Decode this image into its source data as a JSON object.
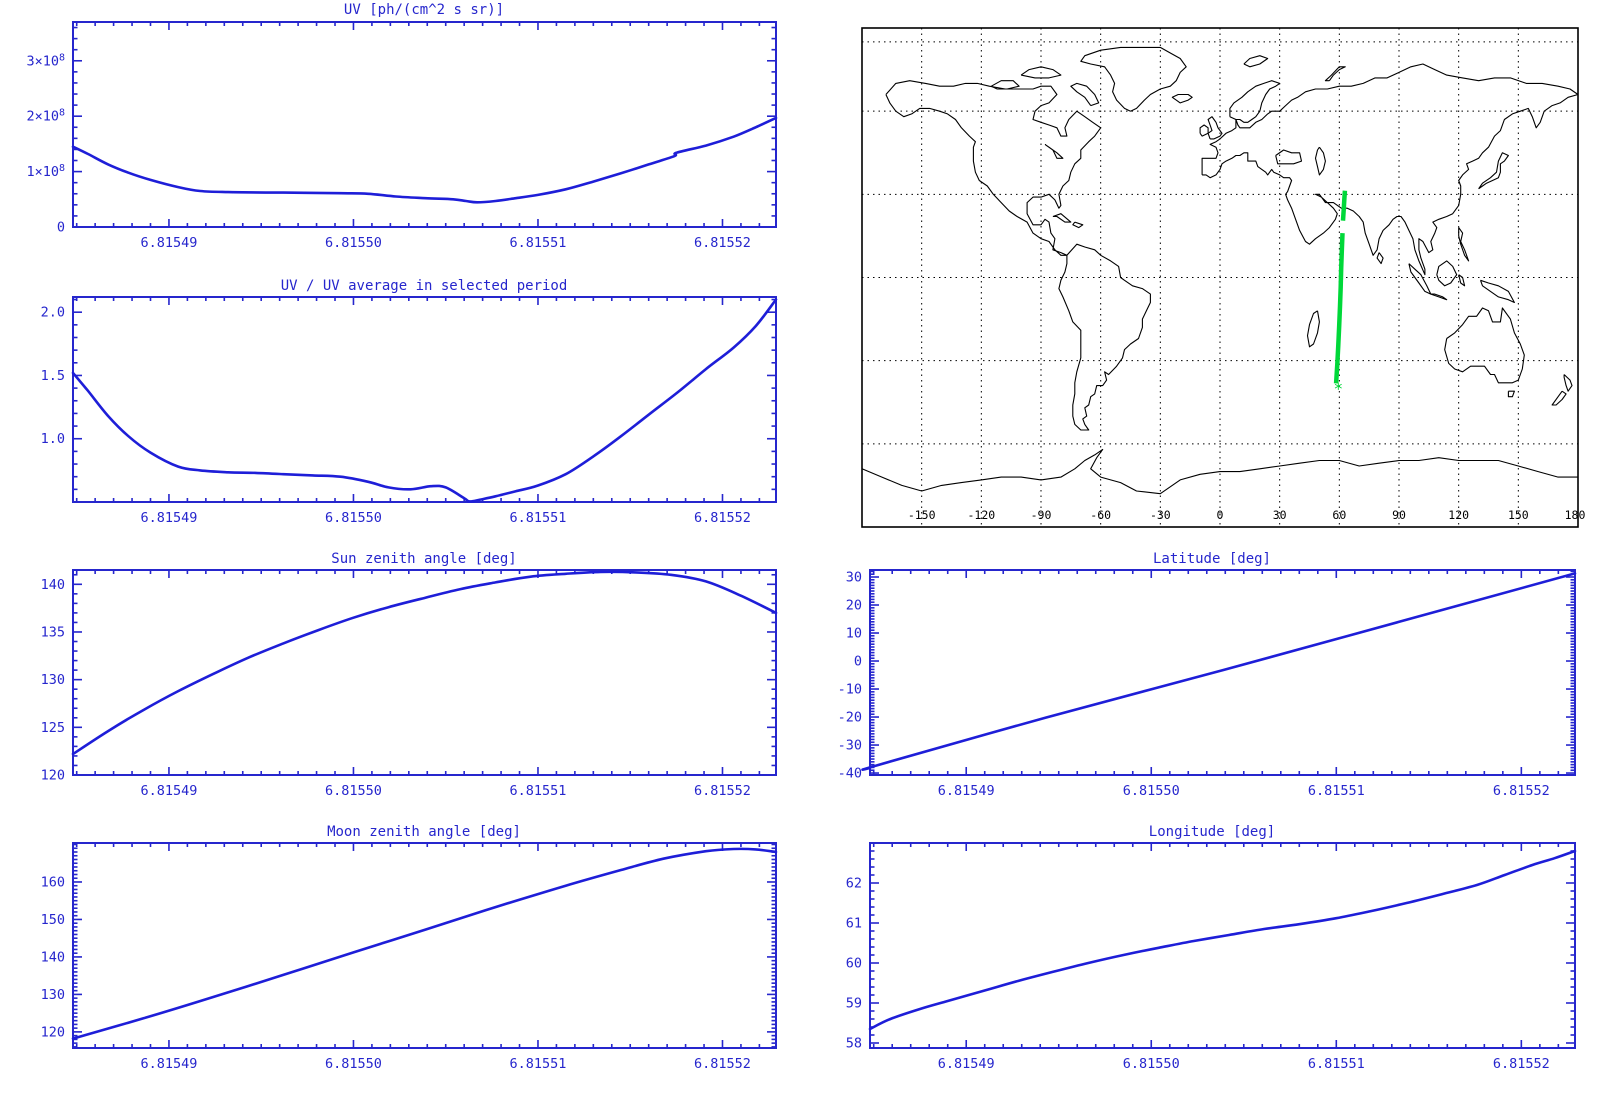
{
  "colors": {
    "axis": "#2626cd",
    "curve": "#1e1ed8",
    "map_outline": "#000000",
    "map_label": "#000000",
    "track": "#00d839",
    "background": "#ffffff"
  },
  "chart_data": [
    {
      "id": "uv",
      "type": "line",
      "title": "UV [ph/(cm^2 s sr)]",
      "xlim": [
        6.8154848,
        6.8155229
      ],
      "x_ticks": {
        "values": [
          6.81549,
          6.8155,
          6.81551,
          6.81552
        ],
        "labels": [
          "6.81549",
          "6.81550",
          "6.81551",
          "6.81552"
        ],
        "minor_per_major": 10
      },
      "ylim": [
        0,
        370000000.0
      ],
      "y_ticks": {
        "values": [
          0,
          100000000.0,
          200000000.0,
          300000000.0
        ],
        "labels": [
          "0",
          "1×10^8",
          "2×10^8",
          "3×10^8"
        ],
        "minor_per_major": 5
      },
      "series": {
        "x": [
          6.8154848,
          6.8154856,
          6.8154867,
          6.8154878,
          6.815489,
          6.8154905,
          6.8154917,
          6.8154932,
          6.8154962,
          6.8154993,
          6.8155008,
          6.8155023,
          6.8155039,
          6.8155054,
          6.8155061,
          6.8155067,
          6.8155077,
          6.8155088,
          6.81551,
          6.8155115,
          6.815513,
          6.8155145,
          6.815516,
          6.8155174,
          6.8155175,
          6.8155191,
          6.8155206,
          6.8155218,
          6.8155229
        ],
        "y": [
          145000000.0,
          132000000.0,
          113000000.0,
          98000000.0,
          85000000.0,
          72000000.0,
          65000000.0,
          63000000.0,
          62000000.0,
          61000000.0,
          60000000.0,
          55000000.0,
          52000000.0,
          50000000.0,
          47000000.0,
          44500000.0,
          47000000.0,
          52000000.0,
          58000000.0,
          68000000.0,
          82000000.0,
          97000000.0,
          113000000.0,
          128000000.0,
          134000000.0,
          147000000.0,
          163000000.0,
          180000000.0,
          197000000.0
        ]
      }
    },
    {
      "id": "uv_ratio",
      "type": "line",
      "title": "UV / UV average in selected period",
      "xlim": [
        6.8154848,
        6.8155229
      ],
      "x_ticks": {
        "values": [
          6.81549,
          6.8155,
          6.81551,
          6.81552
        ],
        "labels": [
          "6.81549",
          "6.81550",
          "6.81551",
          "6.81552"
        ],
        "minor_per_major": 10
      },
      "ylim": [
        0.5,
        2.12
      ],
      "y_ticks": {
        "values": [
          1.0,
          1.5,
          2.0
        ],
        "labels": [
          "1.0",
          "1.5",
          "2.0"
        ],
        "minor_per_major": 5
      },
      "series": {
        "x": [
          6.8154848,
          6.8154856,
          6.8154867,
          6.8154878,
          6.815489,
          6.8154905,
          6.8154917,
          6.8154932,
          6.8154947,
          6.8154962,
          6.8154978,
          6.8154993,
          6.8155008,
          6.8155019,
          6.8155031,
          6.8155042,
          6.815505,
          6.815506,
          6.8155063,
          6.8155069,
          6.8155077,
          6.8155088,
          6.81551,
          6.8155115,
          6.815513,
          6.8155145,
          6.815516,
          6.8155176,
          6.8155191,
          6.8155206,
          6.8155218,
          6.8155229
        ],
        "y": [
          1.52,
          1.38,
          1.18,
          1.02,
          0.89,
          0.78,
          0.75,
          0.735,
          0.73,
          0.72,
          0.71,
          0.7,
          0.66,
          0.615,
          0.6,
          0.625,
          0.615,
          0.53,
          0.505,
          0.52,
          0.545,
          0.585,
          0.63,
          0.72,
          0.86,
          1.02,
          1.19,
          1.37,
          1.55,
          1.72,
          1.89,
          2.1
        ]
      }
    },
    {
      "id": "map",
      "type": "map",
      "projection": "equirectangular",
      "lon_range": [
        -180,
        180
      ],
      "lat_range": [
        -90,
        90
      ],
      "grid": {
        "style": "dotted",
        "lon_lines": [
          -150,
          -120,
          -90,
          -60,
          -30,
          0,
          30,
          60,
          90,
          120,
          150
        ],
        "lat_lines": [
          85,
          60,
          30,
          0,
          -30,
          -60
        ]
      },
      "lon_tick_labels": {
        "values": [
          -150,
          -120,
          -90,
          -60,
          -30,
          0,
          30,
          60,
          90,
          120,
          150,
          180
        ],
        "labels": [
          "-150",
          "-120",
          "-90",
          "-60",
          "-30",
          "0",
          "30",
          "60",
          "90",
          "120",
          "150",
          "180"
        ]
      },
      "track": {
        "color": "#00d839",
        "segments": [
          [
            [
              58.35,
              -38.2
            ],
            [
              59.0,
              -31.2
            ],
            [
              59.5,
              -24.3
            ],
            [
              59.95,
              -17.3
            ],
            [
              60.35,
              -10.4
            ],
            [
              60.67,
              -3.4
            ],
            [
              60.95,
              3.5
            ],
            [
              61.27,
              10.5
            ],
            [
              61.6,
              16.0
            ]
          ],
          [
            [
              61.85,
              20.5
            ],
            [
              62.2,
              24.4
            ],
            [
              62.5,
              28.0
            ],
            [
              62.8,
              31.3
            ]
          ]
        ],
        "start_marker": {
          "symbol": "*",
          "lon": 59.5,
          "lat": -39.8
        }
      }
    },
    {
      "id": "sun_zenith",
      "type": "line",
      "title": "Sun zenith angle [deg]",
      "xlim": [
        6.8154848,
        6.8155229
      ],
      "x_ticks": {
        "values": [
          6.81549,
          6.8155,
          6.81551,
          6.81552
        ],
        "labels": [
          "6.81549",
          "6.81550",
          "6.81551",
          "6.81552"
        ],
        "minor_per_major": 10
      },
      "ylim": [
        120,
        141.5
      ],
      "y_ticks": {
        "values": [
          120,
          125,
          130,
          135,
          140
        ],
        "labels": [
          "120",
          "125",
          "130",
          "135",
          "140"
        ],
        "minor_per_major": 5
      },
      "series": {
        "x": [
          6.8154848,
          6.8154867,
          6.8154886,
          6.8154905,
          6.8154924,
          6.8154943,
          6.8154962,
          6.8154981,
          6.8155,
          6.8155019,
          6.8155039,
          6.8155058,
          6.8155077,
          6.8155096,
          6.8155115,
          6.8155134,
          6.8155153,
          6.8155172,
          6.8155191,
          6.815521,
          6.8155229
        ],
        "y": [
          122.2,
          124.6,
          126.8,
          128.8,
          130.6,
          132.3,
          133.8,
          135.2,
          136.5,
          137.6,
          138.6,
          139.5,
          140.2,
          140.8,
          141.1,
          141.3,
          141.25,
          141.0,
          140.3,
          138.8,
          137.0
        ]
      }
    },
    {
      "id": "latitude",
      "type": "line",
      "title": "Latitude [deg]",
      "xlim": [
        6.8154848,
        6.8155229
      ],
      "x_ticks": {
        "values": [
          6.81549,
          6.8155,
          6.81551,
          6.81552
        ],
        "labels": [
          "6.81549",
          "6.81550",
          "6.81551",
          "6.81552"
        ],
        "minor_per_major": 10
      },
      "ylim": [
        -40.7,
        32.5
      ],
      "y_ticks": {
        "values": [
          -40,
          -30,
          -20,
          -10,
          0,
          10,
          20,
          30
        ],
        "labels": [
          "-40",
          "-30",
          "-20",
          "-10",
          "0",
          "10",
          "20",
          "30"
        ],
        "minor_per_major": 10
      },
      "series": {
        "x": [
          6.8154848,
          6.8154852,
          6.8154943,
          6.8155039,
          6.8155134,
          6.8155229
        ],
        "y": [
          -38.2,
          -37.2,
          -20.2,
          -3.2,
          14.0,
          31.3
        ]
      }
    },
    {
      "id": "moon_zenith",
      "type": "line",
      "title": "Moon zenith angle [deg]",
      "xlim": [
        6.8154848,
        6.8155229
      ],
      "x_ticks": {
        "values": [
          6.81549,
          6.8155,
          6.81551,
          6.81552
        ],
        "labels": [
          "6.81549",
          "6.81550",
          "6.81551",
          "6.81552"
        ],
        "minor_per_major": 10
      },
      "ylim": [
        115.7,
        170.4
      ],
      "y_ticks": {
        "values": [
          120,
          130,
          140,
          150,
          160
        ],
        "labels": [
          "120",
          "130",
          "140",
          "150",
          "160"
        ],
        "minor_per_major": 10
      },
      "series": {
        "x": [
          6.8154848,
          6.8154886,
          6.8154924,
          6.8154962,
          6.8155,
          6.8155039,
          6.8155077,
          6.8155115,
          6.8155145,
          6.8155168,
          6.8155191,
          6.8155206,
          6.8155218,
          6.8155229
        ],
        "y": [
          118.2,
          123.6,
          129.3,
          135.2,
          141.2,
          147.3,
          153.3,
          159.0,
          163.2,
          166.2,
          168.2,
          168.8,
          168.7,
          168.0
        ]
      }
    },
    {
      "id": "longitude",
      "type": "line",
      "title": "Longitude [deg]",
      "xlim": [
        6.8154848,
        6.8155229
      ],
      "x_ticks": {
        "values": [
          6.81549,
          6.8155,
          6.81551,
          6.81552
        ],
        "labels": [
          "6.81549",
          "6.81550",
          "6.81551",
          "6.81552"
        ],
        "minor_per_major": 10
      },
      "ylim": [
        57.875,
        63.0
      ],
      "y_ticks": {
        "values": [
          58,
          59,
          60,
          61,
          62
        ],
        "labels": [
          "58",
          "59",
          "60",
          "61",
          "62"
        ],
        "minor_per_major": 5
      },
      "series": {
        "x": [
          6.8154848,
          6.8154859,
          6.8154875,
          6.815489,
          6.8154909,
          6.8154928,
          6.8154947,
          6.8154966,
          6.8154985,
          6.8155004,
          6.8155023,
          6.8155042,
          6.8155061,
          6.815508,
          6.81551,
          6.8155119,
          6.8155138,
          6.8155157,
          6.8155176,
          6.8155191,
          6.8155206,
          6.8155218,
          6.8155229
        ],
        "y": [
          58.35,
          58.6,
          58.85,
          59.05,
          59.3,
          59.55,
          59.78,
          60.0,
          60.2,
          60.38,
          60.55,
          60.7,
          60.85,
          60.97,
          61.12,
          61.3,
          61.5,
          61.72,
          61.95,
          62.2,
          62.45,
          62.62,
          62.8
        ]
      }
    }
  ]
}
